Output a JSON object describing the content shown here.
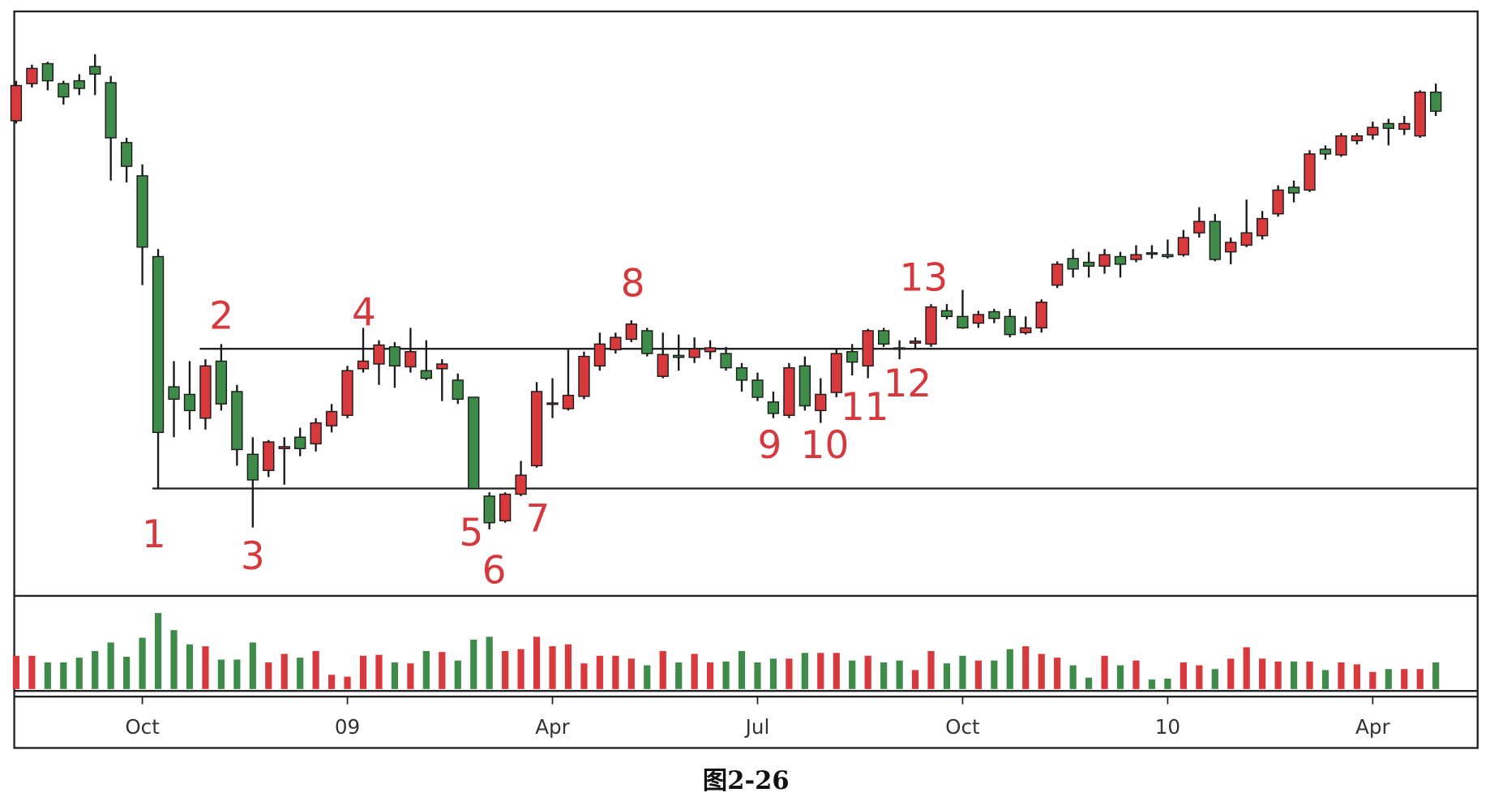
{
  "chart_data": {
    "type": "candlestick",
    "caption": "图2-26",
    "up_color": "#d8393c",
    "down_color": "#3f8c4a",
    "ylim": [
      0,
      613
    ],
    "volume_ylim": [
      0,
      93
    ],
    "open": [
      498,
      537,
      558,
      537,
      540,
      555,
      538,
      475,
      440,
      355,
      218,
      210,
      185,
      245,
      213,
      147,
      130,
      153,
      165,
      158,
      177,
      188,
      237,
      242,
      260,
      239,
      235,
      237,
      225,
      207,
      103,
      77,
      105,
      135,
      200,
      195,
      208,
      240,
      257,
      268,
      277,
      229,
      251,
      249,
      255,
      253,
      238,
      225,
      202,
      188,
      240,
      193,
      212,
      255,
      240,
      277,
      259,
      264,
      263,
      298,
      292,
      285,
      297,
      292,
      275,
      280,
      325,
      353,
      349,
      345,
      355,
      352,
      359,
      357,
      357,
      380,
      392,
      360,
      367,
      377,
      400,
      428,
      425,
      468,
      462,
      477,
      483,
      495,
      489,
      482,
      528
    ],
    "high": [
      540,
      557,
      560,
      540,
      547,
      568,
      545,
      480,
      452,
      363,
      245,
      245,
      247,
      263,
      220,
      165,
      162,
      165,
      175,
      185,
      200,
      240,
      280,
      267,
      265,
      280,
      267,
      247,
      232,
      207,
      107,
      107,
      140,
      223,
      227,
      257,
      255,
      275,
      275,
      288,
      280,
      275,
      273,
      270,
      267,
      260,
      243,
      233,
      213,
      243,
      250,
      227,
      257,
      263,
      279,
      280,
      267,
      270,
      305,
      305,
      320,
      298,
      300,
      300,
      292,
      310,
      350,
      363,
      360,
      363,
      360,
      367,
      367,
      373,
      383,
      407,
      400,
      375,
      415,
      403,
      430,
      435,
      467,
      472,
      485,
      485,
      497,
      500,
      503,
      530,
      537
    ],
    "low": [
      495,
      533,
      530,
      515,
      525,
      525,
      435,
      433,
      325,
      111,
      165,
      173,
      173,
      193,
      135,
      70,
      123,
      115,
      145,
      150,
      170,
      185,
      233,
      220,
      217,
      233,
      225,
      203,
      200,
      111,
      68,
      75,
      103,
      133,
      185,
      193,
      205,
      235,
      253,
      265,
      250,
      227,
      235,
      243,
      247,
      235,
      213,
      203,
      185,
      185,
      193,
      180,
      207,
      230,
      227,
      260,
      247,
      258,
      260,
      289,
      279,
      280,
      285,
      270,
      273,
      275,
      322,
      333,
      333,
      337,
      333,
      349,
      353,
      353,
      355,
      375,
      350,
      347,
      365,
      373,
      397,
      412,
      423,
      457,
      460,
      473,
      478,
      472,
      483,
      480,
      503
    ],
    "close": [
      535,
      553,
      540,
      523,
      532,
      547,
      480,
      450,
      365,
      170,
      205,
      193,
      240,
      200,
      152,
      120,
      160,
      155,
      153,
      180,
      192,
      235,
      245,
      262,
      240,
      255,
      227,
      242,
      205,
      111,
      75,
      105,
      125,
      213,
      201,
      209,
      250,
      263,
      270,
      284,
      253,
      252,
      249,
      258,
      259,
      238,
      225,
      207,
      190,
      238,
      198,
      210,
      253,
      244,
      277,
      263,
      258,
      266,
      302,
      292,
      280,
      294,
      290,
      273,
      280,
      307,
      347,
      342,
      345,
      357,
      347,
      357,
      358,
      355,
      375,
      392,
      352,
      370,
      380,
      395,
      425,
      422,
      463,
      463,
      482,
      482,
      491,
      490,
      495,
      528,
      508
    ],
    "volume": [
      35,
      35,
      28,
      28,
      33,
      40,
      49,
      34,
      54,
      80,
      62,
      47,
      45,
      31,
      31,
      49,
      28,
      37,
      33,
      40,
      15,
      13,
      35,
      36,
      28,
      27,
      40,
      39,
      30,
      52,
      55,
      40,
      42,
      55,
      45,
      47,
      27,
      35,
      35,
      32,
      25,
      40,
      28,
      37,
      28,
      29,
      40,
      28,
      32,
      32,
      38,
      38,
      38,
      30,
      35,
      28,
      30,
      20,
      40,
      27,
      35,
      30,
      30,
      42,
      45,
      37,
      33,
      25,
      12,
      35,
      25,
      30,
      10,
      11,
      28,
      25,
      21,
      32,
      44,
      32,
      29,
      29,
      29,
      20,
      28,
      26,
      18,
      21,
      21,
      21,
      28
    ],
    "hlines": [
      {
        "value": 258,
        "from_index": 12
      },
      {
        "value": 111,
        "from_index": 9
      }
    ],
    "annotations": [
      {
        "text": "1",
        "index": 9
      },
      {
        "text": "2",
        "index": 13
      },
      {
        "text": "3",
        "index": 15
      },
      {
        "text": "4",
        "index": 22
      },
      {
        "text": "5",
        "index": 29
      },
      {
        "text": "6",
        "index": 30
      },
      {
        "text": "7",
        "index": 33
      },
      {
        "text": "8",
        "index": 39
      },
      {
        "text": "9",
        "index": 48
      },
      {
        "text": "10",
        "index": 51
      },
      {
        "text": "11",
        "index": 54
      },
      {
        "text": "12",
        "index": 57
      },
      {
        "text": "13",
        "index": 58
      }
    ],
    "xticks": [
      {
        "value": 8,
        "label": "Oct"
      },
      {
        "value": 21,
        "label": "09"
      },
      {
        "value": 34,
        "label": "Apr"
      },
      {
        "value": 47,
        "label": "Jul"
      },
      {
        "value": 60,
        "label": "Oct"
      },
      {
        "value": 73,
        "label": "10"
      },
      {
        "value": 86,
        "label": "Apr"
      }
    ]
  }
}
